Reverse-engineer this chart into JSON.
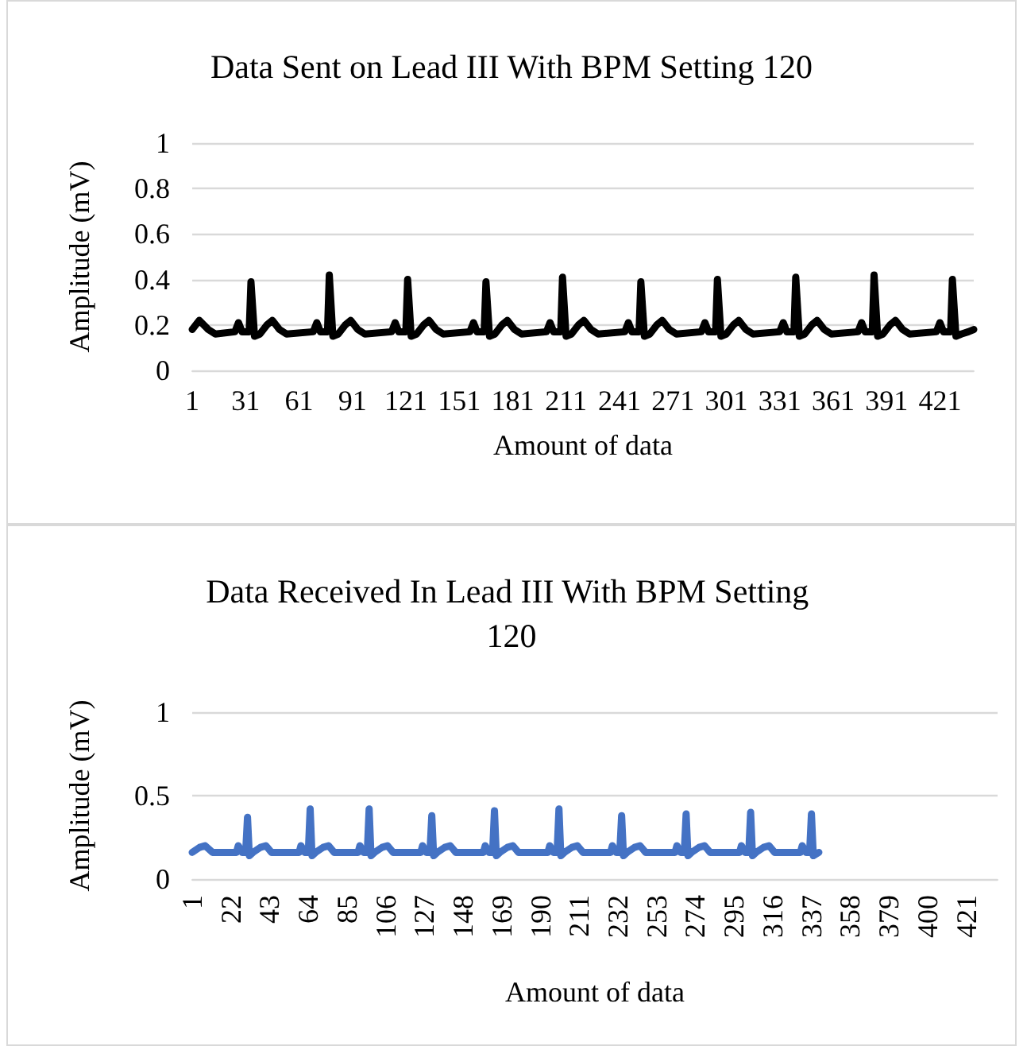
{
  "chart_data": [
    {
      "type": "line",
      "title": "Data Sent on Lead III With BPM Setting 120",
      "xlabel": "Amount of data",
      "ylabel": "Amplitude (mV)",
      "xlim": [
        1,
        440
      ],
      "xticks": [
        1,
        31,
        61,
        91,
        121,
        151,
        181,
        211,
        241,
        271,
        301,
        331,
        361,
        391,
        421
      ],
      "ylim": [
        0,
        1
      ],
      "yticks": [
        0,
        0.2,
        0.4,
        0.6,
        0.8,
        1
      ],
      "grid": "y",
      "marker": "none",
      "line_style": "solid",
      "series": [
        {
          "color": "#000000",
          "x": [
            1,
            5,
            10,
            14,
            25,
            27,
            29,
            33,
            34,
            36,
            39,
            43,
            46,
            50,
            54,
            69,
            71,
            73,
            77,
            78,
            80,
            83,
            87,
            90,
            94,
            98,
            113,
            115,
            117,
            121,
            122,
            124,
            127,
            131,
            134,
            138,
            142,
            157,
            159,
            161,
            165,
            166,
            168,
            171,
            175,
            178,
            182,
            186,
            200,
            202,
            204,
            208,
            209,
            211,
            214,
            218,
            221,
            225,
            229,
            244,
            246,
            248,
            252,
            253,
            255,
            258,
            262,
            265,
            269,
            273,
            287,
            289,
            291,
            295,
            296,
            298,
            301,
            305,
            308,
            312,
            316,
            331,
            333,
            335,
            339,
            340,
            342,
            345,
            349,
            352,
            356,
            360,
            375,
            377,
            379,
            383,
            384,
            386,
            389,
            393,
            396,
            400,
            404,
            419,
            421,
            423,
            427,
            428,
            430,
            433,
            437,
            440
          ],
          "values": [
            0.18,
            0.22,
            0.18,
            0.16,
            0.17,
            0.21,
            0.17,
            0.17,
            0.39,
            0.15,
            0.16,
            0.2,
            0.22,
            0.18,
            0.16,
            0.17,
            0.21,
            0.17,
            0.17,
            0.42,
            0.15,
            0.16,
            0.2,
            0.22,
            0.18,
            0.16,
            0.17,
            0.21,
            0.17,
            0.17,
            0.4,
            0.15,
            0.16,
            0.2,
            0.22,
            0.18,
            0.16,
            0.17,
            0.21,
            0.17,
            0.17,
            0.39,
            0.15,
            0.16,
            0.2,
            0.22,
            0.18,
            0.16,
            0.17,
            0.21,
            0.17,
            0.17,
            0.41,
            0.15,
            0.16,
            0.2,
            0.22,
            0.18,
            0.16,
            0.17,
            0.21,
            0.17,
            0.17,
            0.39,
            0.15,
            0.16,
            0.2,
            0.22,
            0.18,
            0.16,
            0.17,
            0.21,
            0.17,
            0.17,
            0.4,
            0.15,
            0.16,
            0.2,
            0.22,
            0.18,
            0.16,
            0.17,
            0.21,
            0.17,
            0.17,
            0.41,
            0.15,
            0.16,
            0.2,
            0.22,
            0.18,
            0.16,
            0.17,
            0.21,
            0.17,
            0.17,
            0.42,
            0.15,
            0.16,
            0.2,
            0.22,
            0.18,
            0.16,
            0.17,
            0.21,
            0.17,
            0.17,
            0.4,
            0.15,
            0.16,
            0.17,
            0.18
          ]
        }
      ]
    },
    {
      "type": "line",
      "title": "Data Received In Lead III With BPM Setting 120",
      "xlabel": "Amount of data",
      "ylabel": "Amplitude (mV)",
      "xlim": [
        1,
        438
      ],
      "xticks": [
        1,
        22,
        43,
        64,
        85,
        106,
        127,
        148,
        169,
        190,
        211,
        232,
        253,
        274,
        295,
        316,
        337,
        358,
        379,
        400,
        421
      ],
      "ylim": [
        0,
        1
      ],
      "yticks": [
        0,
        0.5,
        1
      ],
      "grid": "y",
      "marker": "none",
      "line_style": "solid",
      "series": [
        {
          "color": "#4472c4",
          "x": [
            1,
            5,
            8,
            12,
            25,
            26,
            28,
            30,
            31,
            32,
            34,
            38,
            41,
            44,
            59,
            60,
            62,
            64,
            65,
            66,
            68,
            72,
            75,
            78,
            91,
            92,
            94,
            96,
            97,
            98,
            100,
            104,
            107,
            110,
            125,
            126,
            128,
            130,
            131,
            132,
            134,
            138,
            141,
            144,
            159,
            160,
            162,
            164,
            165,
            166,
            168,
            172,
            175,
            178,
            194,
            195,
            197,
            199,
            200,
            201,
            203,
            207,
            210,
            213,
            228,
            229,
            231,
            233,
            234,
            235,
            237,
            241,
            244,
            247,
            263,
            264,
            266,
            268,
            269,
            270,
            272,
            276,
            279,
            282,
            298,
            299,
            301,
            303,
            304,
            305,
            307,
            311,
            314,
            317,
            331,
            332,
            334,
            336,
            337,
            338,
            341
          ],
          "values": [
            0.16,
            0.19,
            0.2,
            0.16,
            0.16,
            0.2,
            0.16,
            0.16,
            0.37,
            0.14,
            0.16,
            0.19,
            0.2,
            0.16,
            0.16,
            0.2,
            0.16,
            0.16,
            0.42,
            0.14,
            0.16,
            0.19,
            0.2,
            0.16,
            0.16,
            0.2,
            0.16,
            0.16,
            0.42,
            0.14,
            0.16,
            0.19,
            0.2,
            0.16,
            0.16,
            0.2,
            0.16,
            0.16,
            0.38,
            0.14,
            0.16,
            0.19,
            0.2,
            0.16,
            0.16,
            0.2,
            0.16,
            0.16,
            0.41,
            0.14,
            0.16,
            0.19,
            0.2,
            0.16,
            0.16,
            0.2,
            0.16,
            0.16,
            0.42,
            0.14,
            0.16,
            0.19,
            0.2,
            0.16,
            0.16,
            0.2,
            0.16,
            0.16,
            0.38,
            0.14,
            0.16,
            0.19,
            0.2,
            0.16,
            0.16,
            0.2,
            0.16,
            0.16,
            0.39,
            0.14,
            0.16,
            0.19,
            0.2,
            0.16,
            0.16,
            0.2,
            0.16,
            0.16,
            0.4,
            0.14,
            0.16,
            0.19,
            0.2,
            0.16,
            0.16,
            0.2,
            0.16,
            0.16,
            0.39,
            0.14,
            0.16
          ]
        }
      ]
    }
  ]
}
